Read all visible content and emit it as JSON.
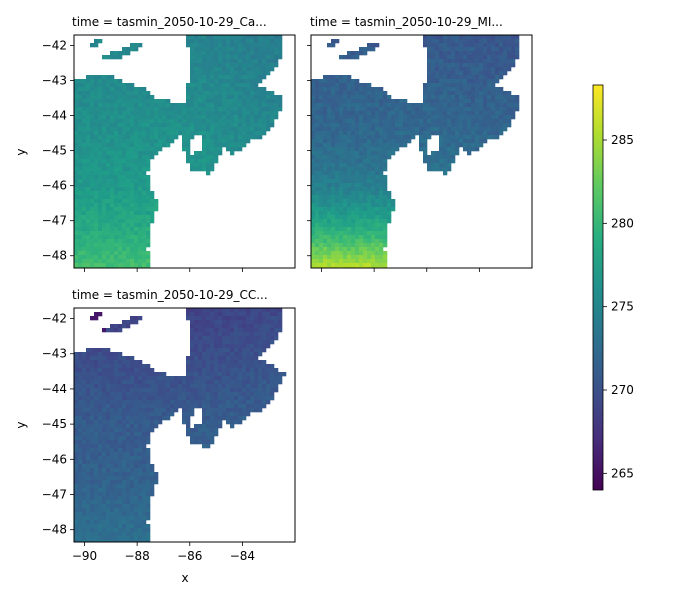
{
  "chart_data": {
    "type": "heatmap",
    "panels": [
      {
        "title": "time = tasmin_2050-10-29_Ca...",
        "ylabel": "y",
        "xlabel": "",
        "show_xticklabels": false,
        "show_yticklabels": true,
        "field": {
          "base": 276.5,
          "south_gradient": 0.9,
          "north_cool": 0.5,
          "east_cool": 0.6,
          "noise": 0.8
        },
        "ne_patch": null
      },
      {
        "title": "time = tasmin_2050-10-29_MI...",
        "ylabel": "",
        "xlabel": "",
        "show_xticklabels": false,
        "show_yticklabels": false,
        "field": {
          "base": 272.5,
          "south_gradient": 2.6,
          "north_cool": 0.6,
          "east_cool": 0.2,
          "noise": 0.9
        },
        "ne_patch": null
      },
      {
        "title": "time = tasmin_2050-10-29_CC...",
        "ylabel": "y",
        "xlabel": "x",
        "show_xticklabels": true,
        "show_yticklabels": true,
        "field": {
          "base": 271.0,
          "south_gradient": 0.4,
          "north_cool": 0.8,
          "east_cool": -0.3,
          "noise": 0.7
        },
        "ne_patch": 265.5
      }
    ],
    "x_ticks": [
      -90,
      -88,
      -86,
      -84
    ],
    "y_ticks": [
      -42,
      -43,
      -44,
      -45,
      -46,
      -47,
      -48
    ],
    "xlim": [
      -90.4,
      -82.0
    ],
    "ylim": [
      -48.35,
      -41.7
    ],
    "colorbar": {
      "ticks": [
        265,
        270,
        275,
        280,
        285
      ],
      "range": [
        264.0,
        288.3
      ],
      "colormap": "viridis"
    }
  }
}
